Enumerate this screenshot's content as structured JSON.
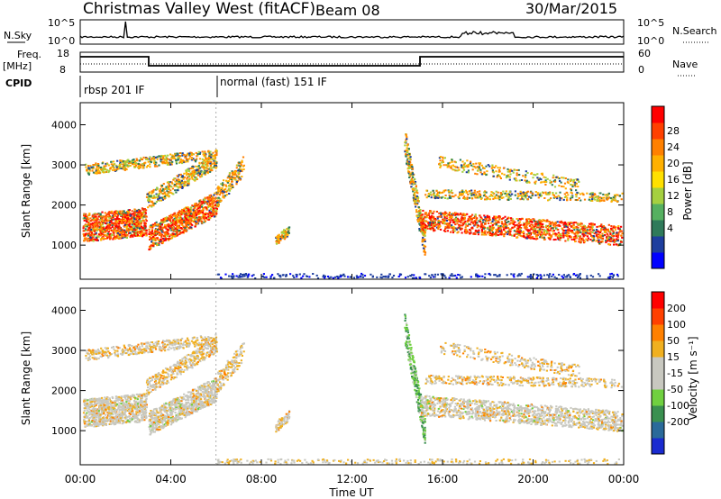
{
  "header": {
    "station": "Christmas Valley West (fitACF)",
    "beam": "Beam 08",
    "date": "30/Mar/2015"
  },
  "top_panels": {
    "nsky_label": "N.Sky",
    "nsearch_label": "N.Search",
    "nsky_ticks": [
      "10^5",
      "10^0"
    ],
    "nsearch_ticks": [
      "10^5",
      "10^0"
    ],
    "freq_label": "Freq.",
    "freq_unit": "[MHz]",
    "freq_ticks": [
      "18",
      "8"
    ],
    "nave_label": "Nave",
    "nave_ticks": [
      "60",
      "0"
    ],
    "cpid_label": "CPID",
    "cpid_modes": [
      {
        "name": "rbsp 201 IF",
        "start_hour": 0
      },
      {
        "name": "normal (fast) 151 IF",
        "start_hour": 6
      }
    ]
  },
  "chart_data": [
    {
      "type": "heatmap",
      "name": "power",
      "ylabel": "Slant Range [km]",
      "yticks": [
        1000,
        2000,
        3000,
        4000
      ],
      "ylim": [
        150,
        4550
      ],
      "xlim": [
        0,
        24
      ],
      "colorbar_label": "Power [dB]",
      "colorbar_ticks": [
        28,
        24,
        20,
        16,
        12,
        8,
        4
      ],
      "colors": [
        "#0000ff",
        "#1e3e9e",
        "#2f7a5a",
        "#55b060",
        "#a5d040",
        "#ffe000",
        "#ffb000",
        "#ff8000",
        "#ff4000",
        "#ff0000"
      ]
    },
    {
      "type": "heatmap",
      "name": "velocity",
      "ylabel": "Slant Range [km]",
      "yticks": [
        1000,
        2000,
        3000,
        4000
      ],
      "ylim": [
        150,
        4550
      ],
      "xlim": [
        0,
        24
      ],
      "colorbar_label": "Velocity [m s⁻¹]",
      "colorbar_ticks": [
        200,
        100,
        50,
        15,
        -15,
        -50,
        -100,
        -200
      ],
      "colors": [
        "#1a2bd0",
        "#2a6a9a",
        "#3a9050",
        "#70d040",
        "#c8c8c0",
        "#c8c8c0",
        "#f0b020",
        "#ff8000",
        "#ff4000",
        "#ff0000"
      ]
    }
  ],
  "x_axis": {
    "ticks": [
      "00:00",
      "04:00",
      "08:00",
      "12:00",
      "16:00",
      "20:00",
      "00:00"
    ],
    "label": "Time UT"
  }
}
